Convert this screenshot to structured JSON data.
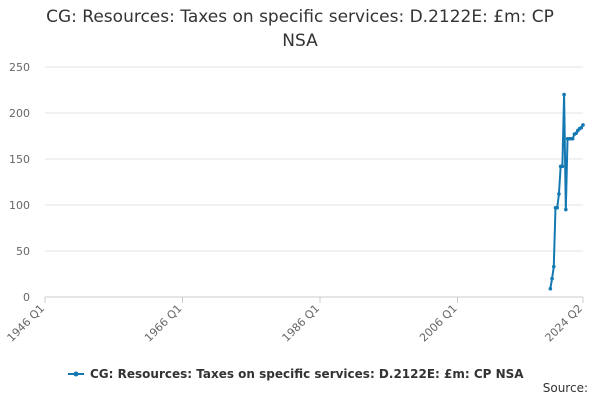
{
  "chart_data": {
    "type": "line",
    "title": "CG: Resources: Taxes on specific services: D.2122E: £m: CP NSA",
    "source": "Source:",
    "x": [
      2019.5,
      2019.75,
      2020.0,
      2020.25,
      2020.5,
      2020.75,
      2021.0,
      2021.25,
      2021.5,
      2021.75,
      2022.0,
      2022.25,
      2022.5,
      2022.75,
      2023.0,
      2023.25,
      2023.5,
      2023.75,
      2024.0,
      2024.25
    ],
    "series": [
      {
        "name": "CG: Resources: Taxes on specific services: D.2122E: £m: CP NSA",
        "color": "#1479b3",
        "values": [
          9,
          20,
          33,
          97,
          97,
          112,
          142,
          142,
          220,
          95,
          172,
          172,
          172,
          172,
          177,
          178,
          181,
          183,
          184,
          187
        ]
      }
    ],
    "xlim": [
      1946,
      2024.25
    ],
    "xticks": [
      {
        "value": 1946,
        "label": "1946 Q1"
      },
      {
        "value": 1966,
        "label": "1966 Q1"
      },
      {
        "value": 1986,
        "label": "1986 Q1"
      },
      {
        "value": 2006,
        "label": "2006 Q1"
      },
      {
        "value": 2024.25,
        "label": "2024 Q2"
      }
    ],
    "ylim": [
      0,
      250
    ],
    "yticks": [
      0,
      50,
      100,
      150,
      200,
      250
    ],
    "grid": true,
    "legend": "bottom"
  }
}
